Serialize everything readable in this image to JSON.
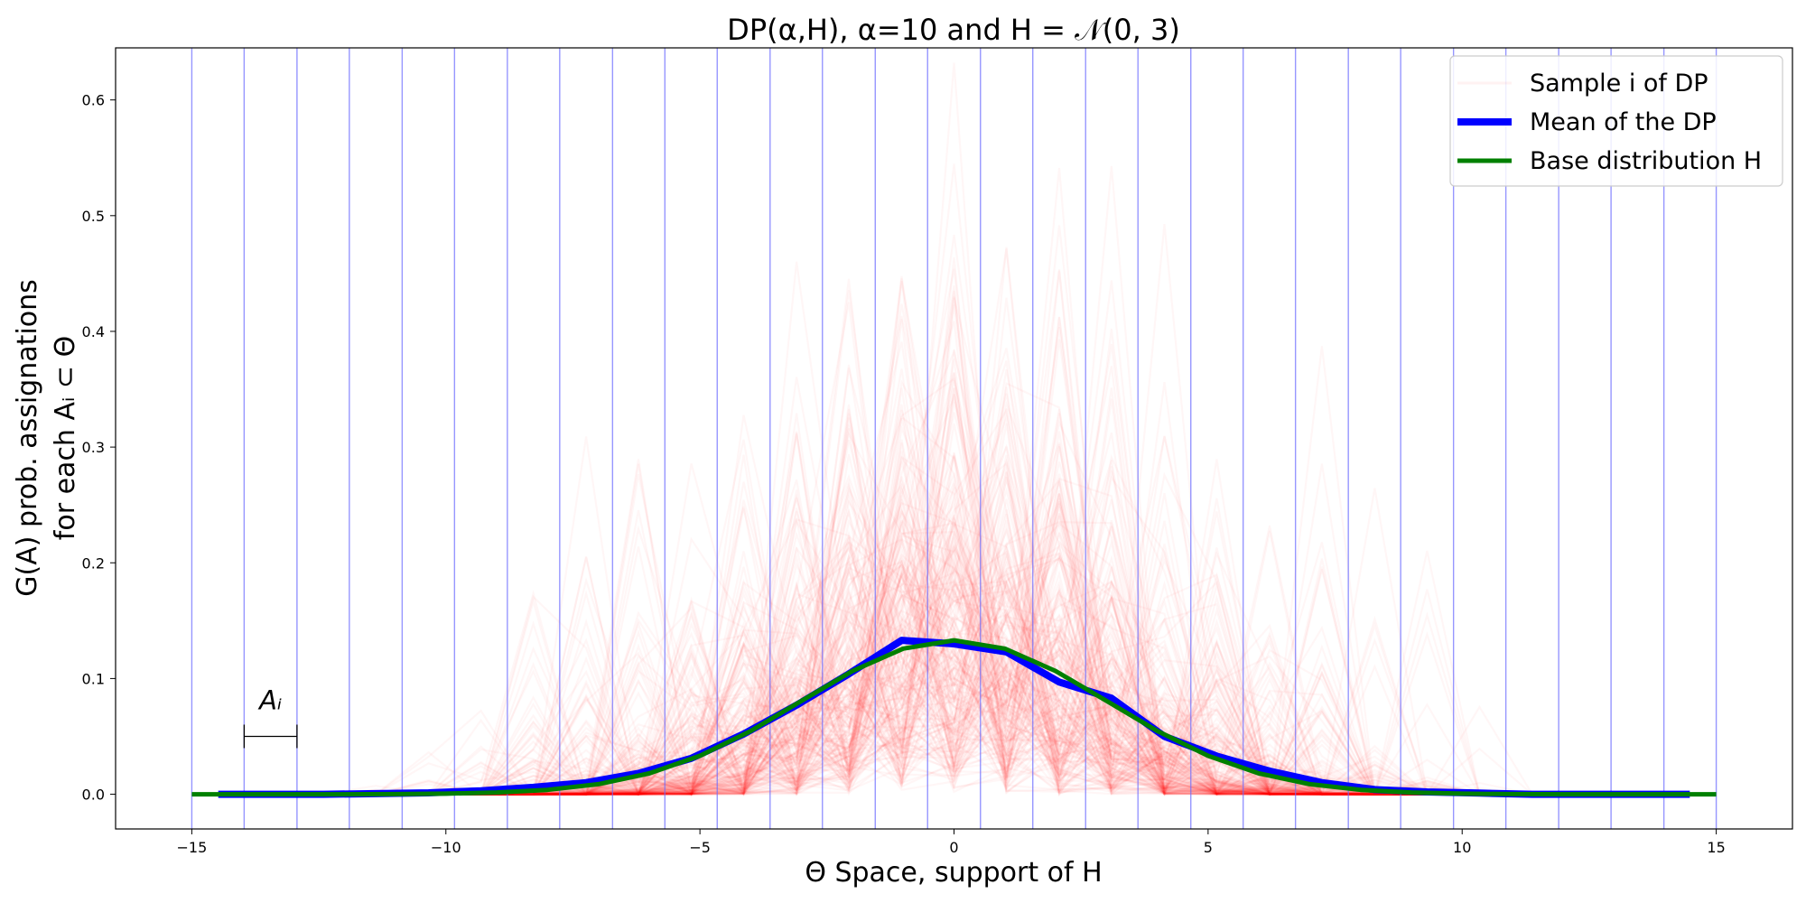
{
  "chart_data": {
    "type": "line",
    "title": "DP(α,H), α=10 and H = 𝒩(0, 3)",
    "xlabel": "Θ Space, support of H",
    "ylabel_line1": "G(A) prob. assignations",
    "ylabel_line2": "for each Aᵢ ⊂ Θ",
    "xlim": [
      -16.5,
      16.5
    ],
    "ylim": [
      -0.03,
      0.645
    ],
    "xticks": [
      -15,
      -10,
      -5,
      0,
      5,
      10,
      15
    ],
    "xtick_labels": [
      "−15",
      "−10",
      "−5",
      "0",
      "5",
      "10",
      "15"
    ],
    "yticks": [
      0.0,
      0.1,
      0.2,
      0.3,
      0.4,
      0.5,
      0.6
    ],
    "ytick_labels": [
      "0.0",
      "0.1",
      "0.2",
      "0.3",
      "0.4",
      "0.5",
      "0.6"
    ],
    "grid": false,
    "legend_position": "top-right",
    "partition_edges": [
      -15,
      -13.97,
      -12.93,
      -11.9,
      -10.86,
      -9.83,
      -8.79,
      -7.76,
      -6.72,
      -5.69,
      -4.66,
      -3.62,
      -2.59,
      -1.55,
      -0.52,
      0.52,
      1.55,
      2.59,
      3.62,
      4.66,
      5.69,
      6.72,
      7.76,
      8.79,
      9.83,
      10.86,
      11.9,
      12.93,
      13.97,
      15
    ],
    "series": [
      {
        "name": "Sample i of DP",
        "color": "#ff0000",
        "style": "many faint sample lines"
      },
      {
        "name": "Mean of the DP",
        "color": "#0000ff",
        "x": [
          -14.48,
          -13.45,
          -12.41,
          -11.38,
          -10.34,
          -9.31,
          -8.28,
          -7.24,
          -6.21,
          -5.17,
          -4.14,
          -3.1,
          -2.07,
          -1.03,
          0.0,
          1.03,
          2.07,
          3.1,
          4.14,
          5.17,
          6.21,
          7.24,
          8.28,
          9.31,
          10.34,
          11.38,
          12.41,
          13.45,
          14.48
        ],
        "values": [
          0.0,
          0.0,
          0.0,
          0.0005,
          0.0012,
          0.003,
          0.006,
          0.01,
          0.018,
          0.031,
          0.052,
          0.077,
          0.104,
          0.133,
          0.13,
          0.123,
          0.097,
          0.083,
          0.05,
          0.033,
          0.02,
          0.01,
          0.004,
          0.002,
          0.001,
          0.0,
          0.0,
          0.0,
          0.0
        ]
      },
      {
        "name": "Base distribution H",
        "color": "#008000",
        "x": [
          -15,
          -14,
          -13,
          -12,
          -11,
          -10,
          -9,
          -8,
          -7,
          -6,
          -5,
          -4,
          -3,
          -2,
          -1,
          0,
          1,
          2,
          3,
          4,
          5,
          6,
          7,
          8,
          9,
          10,
          11,
          12,
          13,
          14,
          15
        ],
        "values": [
          0.0,
          0.0,
          0.0,
          0.0,
          0.0001,
          0.0005,
          0.0015,
          0.0038,
          0.0087,
          0.018,
          0.0332,
          0.0547,
          0.0807,
          0.1065,
          0.1258,
          0.133,
          0.1258,
          0.1065,
          0.0807,
          0.0547,
          0.0332,
          0.018,
          0.0087,
          0.0038,
          0.0015,
          0.0005,
          0.0001,
          0.0,
          0.0,
          0.0,
          0.0
        ]
      }
    ],
    "annotation": {
      "label": "Aᵢ",
      "x_from": -13.97,
      "x_to": -12.93,
      "y": 0.05
    }
  }
}
